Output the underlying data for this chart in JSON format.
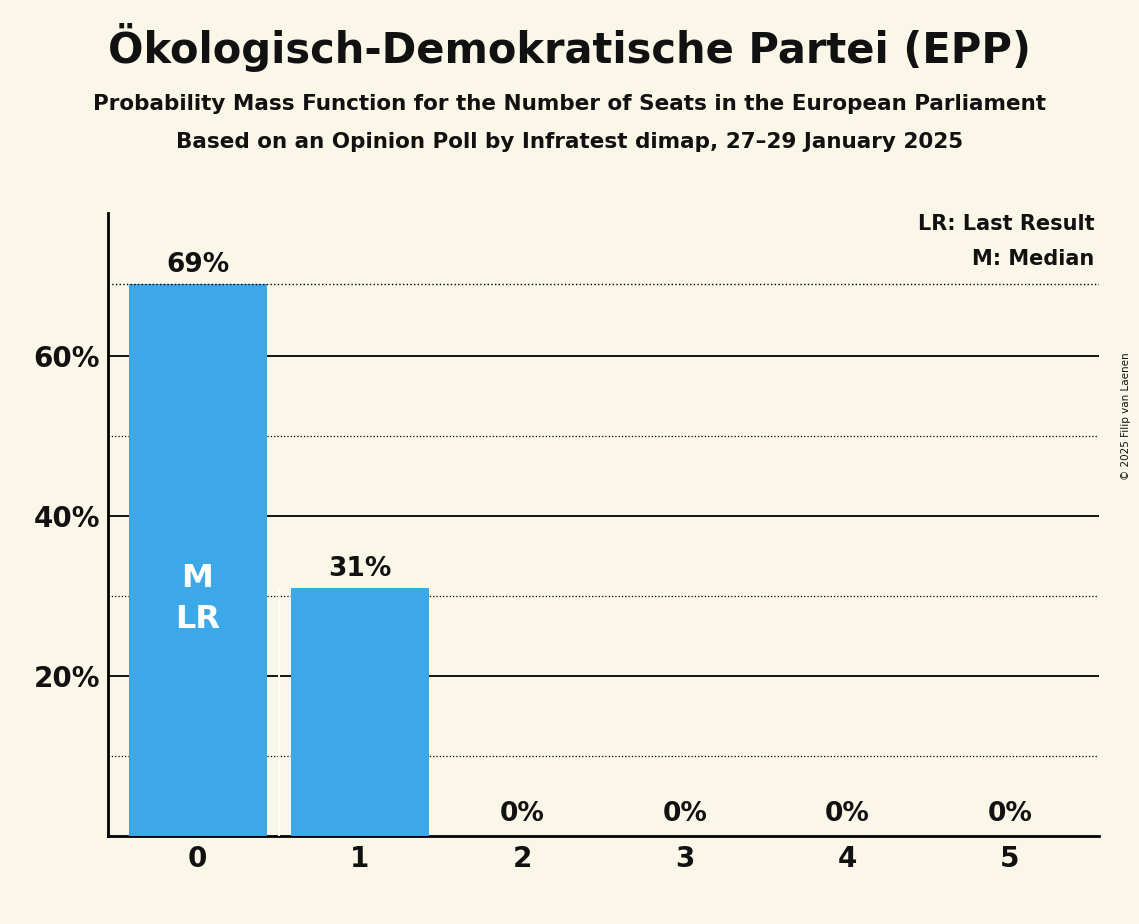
{
  "title": "Ökologisch-Demokratische Partei (EPP)",
  "subtitle1": "Probability Mass Function for the Number of Seats in the European Parliament",
  "subtitle2": "Based on an Opinion Poll by Infratest dimap, 27–29 January 2025",
  "copyright": "© 2025 Filip van Laenen",
  "categories": [
    0,
    1,
    2,
    3,
    4,
    5
  ],
  "values": [
    0.69,
    0.31,
    0.0,
    0.0,
    0.0,
    0.0
  ],
  "bar_color": "#3DA8E8",
  "background_color": "#FAF6E8",
  "median_seat": 0,
  "last_result_seat": 0,
  "median_label": "M",
  "last_result_label": "LR",
  "legend_lr": "LR: Last Result",
  "legend_m": "M: Median",
  "text_color": "#111111",
  "bar_label_color_light": "#ffffff",
  "dotted_line_value": 0.69,
  "ylim": [
    0,
    0.78
  ],
  "yticks": [
    0.0,
    0.2,
    0.4,
    0.6
  ],
  "ytick_labels": [
    "",
    "20%",
    "40%",
    "60%"
  ],
  "solid_grid_values": [
    0.2,
    0.4,
    0.6
  ],
  "dotted_grid_values": [
    0.1,
    0.3,
    0.5
  ],
  "title_fontsize": 30,
  "subtitle_fontsize": 15.5,
  "tick_fontsize": 20,
  "annotation_fontsize": 19,
  "ml_fontsize": 23,
  "legend_fontsize": 15
}
